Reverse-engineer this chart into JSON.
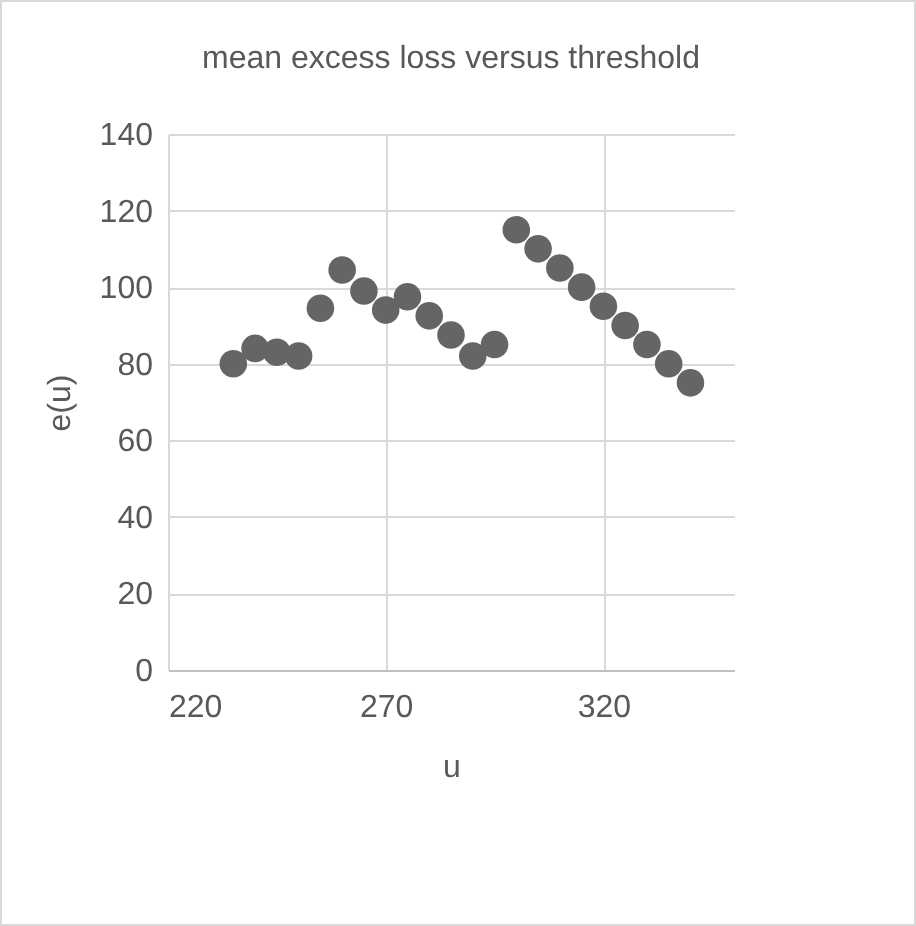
{
  "chart_data": {
    "type": "scatter",
    "title": "mean excess loss versus threshold",
    "xlabel": "u",
    "ylabel": "e(u)",
    "x": [
      235,
      240,
      245,
      250,
      255,
      260,
      265,
      270,
      275,
      280,
      285,
      290,
      295,
      300,
      305,
      310,
      315,
      320,
      325,
      330,
      335,
      340
    ],
    "series": [
      {
        "color": "#656565",
        "values": [
          80,
          84,
          83,
          82,
          94.5,
          104.5,
          99,
          94,
          97.5,
          92.5,
          87.5,
          82,
          85,
          115,
          110,
          105,
          100,
          95,
          90,
          85,
          80,
          75
        ]
      }
    ],
    "xlim": [
      220,
      350
    ],
    "xticks": [
      220,
      270,
      320
    ],
    "ylim": [
      0,
      140
    ],
    "yticks": [
      0,
      20,
      40,
      60,
      80,
      100,
      120,
      140
    ],
    "grid": true,
    "marker": "circle"
  }
}
